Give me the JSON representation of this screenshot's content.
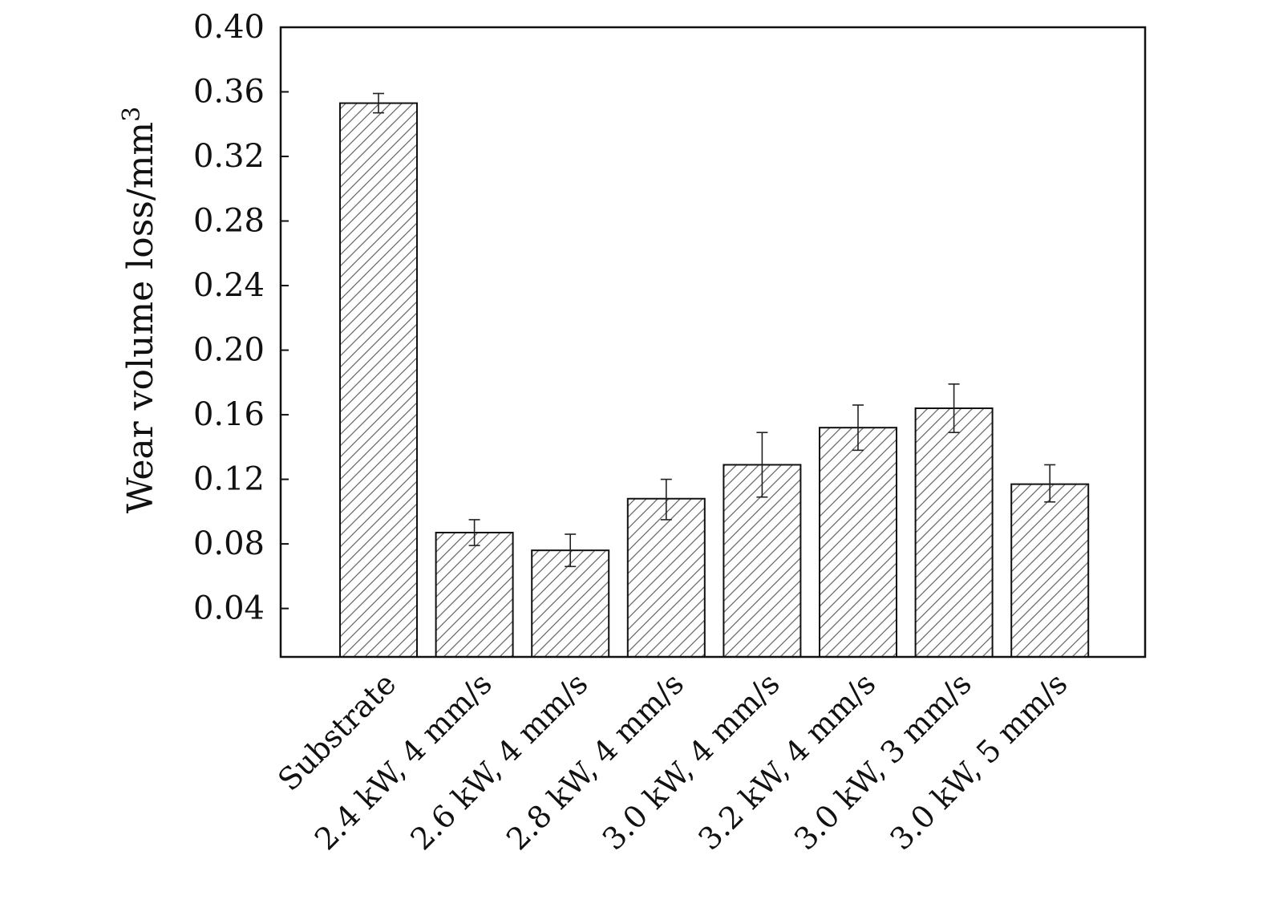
{
  "chart_data": {
    "type": "bar",
    "ylabel": "Wear volume loss/mm",
    "ylabel_superscript": "3",
    "ylim": [
      0.01,
      0.4
    ],
    "yticks": [
      "0.04",
      "0.08",
      "0.12",
      "0.16",
      "0.20",
      "0.24",
      "0.28",
      "0.32",
      "0.36",
      "0.40"
    ],
    "categories": [
      "Substrate",
      "2.4 kW, 4 mm/s",
      "2.6 kW, 4 mm/s",
      "2.8 kW, 4 mm/s",
      "3.0 kW, 4 mm/s",
      "3.2 kW, 4 mm/s",
      "3.0 kW, 3 mm/s",
      "3.0 kW, 5 mm/s"
    ],
    "values": [
      0.353,
      0.087,
      0.076,
      0.108,
      0.129,
      0.152,
      0.164,
      0.117
    ],
    "error_low": [
      0.347,
      0.079,
      0.066,
      0.095,
      0.109,
      0.138,
      0.149,
      0.106
    ],
    "error_high": [
      0.359,
      0.095,
      0.086,
      0.12,
      0.149,
      0.166,
      0.179,
      0.129
    ],
    "fill_pattern": "diagonal-hatch",
    "bar_color": "#ffffff",
    "stroke_color": "#111111",
    "hatch_color": "#555555",
    "grid": false,
    "legend": "none"
  }
}
